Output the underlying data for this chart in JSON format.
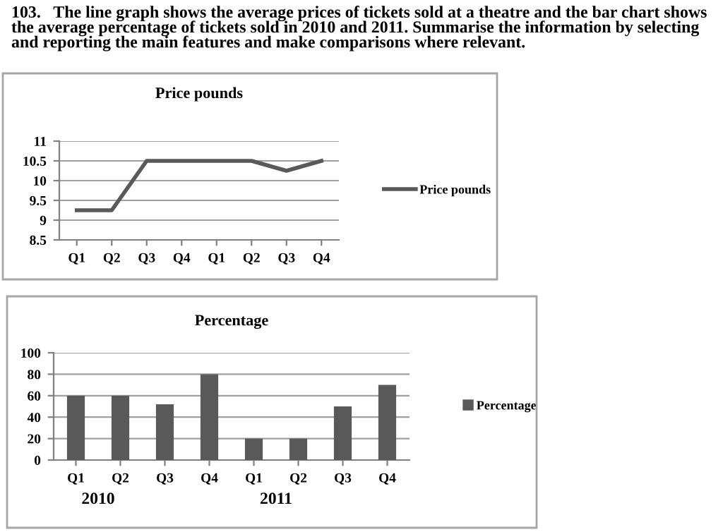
{
  "chart_data": [
    {
      "type": "line",
      "title": "Price pounds",
      "annotations": [
        "103.   The line graph shows the average prices of tickets sold at a theatre and the bar chart shows the average percentage of tickets sold in 2010 and 2011. Summarise the information by selecting and reporting the main features and make comparisons where relevant."
      ],
      "categories": [
        "Q1",
        "Q2",
        "Q3",
        "Q4",
        "Q1",
        "Q2",
        "Q3",
        "Q4"
      ],
      "series": [
        {
          "name": "Price pounds",
          "color": "#595959",
          "values": [
            9.25,
            9.25,
            10.5,
            10.5,
            10.5,
            10.5,
            10.25,
            10.5
          ]
        }
      ],
      "ylim": [
        8.5,
        11
      ],
      "yticks": [
        8.5,
        9,
        9.5,
        10,
        10.5,
        11
      ],
      "grid": "y",
      "legend": "right",
      "marker": "none",
      "line_style": "solid"
    },
    {
      "type": "bar",
      "title": "Percentage",
      "annotations": [
        "2010",
        "2011"
      ],
      "categories": [
        "Q1",
        "Q2",
        "Q3",
        "Q4",
        "Q1",
        "Q2",
        "Q3",
        "Q4"
      ],
      "series": [
        {
          "name": "Percentage",
          "color": "#595959",
          "values": [
            60,
            60,
            52,
            80,
            20,
            20,
            50,
            70
          ]
        }
      ],
      "ylim": [
        0,
        100
      ],
      "yticks": [
        0,
        20,
        40,
        60,
        80,
        100
      ],
      "grid": "y",
      "legend": "right"
    }
  ]
}
